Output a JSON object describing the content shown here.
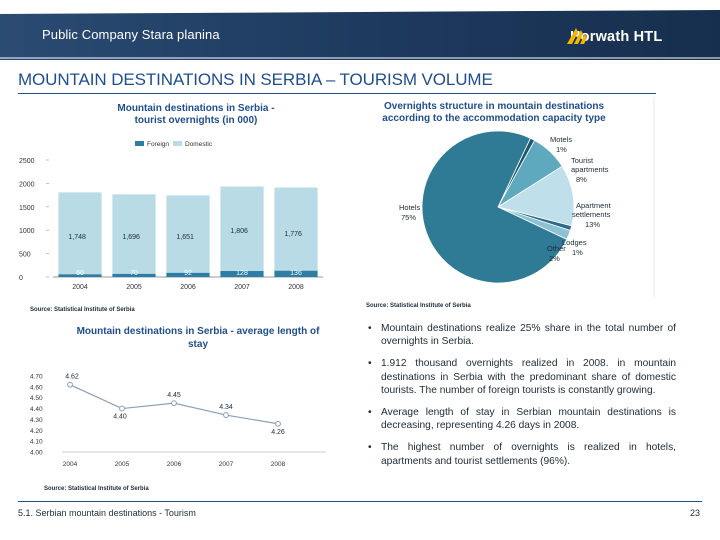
{
  "header": {
    "company": "Public Company Stara planina",
    "logo_text": "Horwath HTL"
  },
  "title": "MOUNTAIN DESTINATIONS IN SERBIA – TOURISM VOLUME",
  "colors": {
    "navy": "#1f3d63",
    "accent": "#1f4e8c",
    "foreign": "#2d7ea6",
    "domestic": "#b9dbe6",
    "line": "#8a9fb8"
  },
  "overnights_chart": {
    "title_line1": "Mountain destinations in Serbia -",
    "title_line2": "tourist overnights (in 000)",
    "source": "Source: Statistical Institute of Serbia",
    "chart_data": {
      "type": "bar",
      "stacked": true,
      "categories": [
        "2004",
        "2005",
        "2006",
        "2007",
        "2008"
      ],
      "series": [
        {
          "name": "Foreign",
          "values": [
            60,
            70,
            92,
            128,
            136
          ],
          "labels": [
            "60",
            "70",
            "92",
            "128",
            "136"
          ]
        },
        {
          "name": "Domestic",
          "values": [
            1748,
            1696,
            1651,
            1806,
            1776
          ],
          "labels": [
            "1,748",
            "1,696",
            "1,651",
            "1,806",
            "1,776"
          ]
        }
      ],
      "yticks": [
        "0",
        "500",
        "1000",
        "1500",
        "2000",
        "2500"
      ],
      "ylim": [
        0,
        2500
      ],
      "legend": "top"
    }
  },
  "structure_chart": {
    "title_line1": "Overnights structure in mountain destinations",
    "title_line2": "according to the accommodation capacity type",
    "source": "Source: Statistical Institute of Serbia",
    "chart_data": {
      "type": "pie",
      "slices": [
        {
          "label": "Hotels",
          "pct": "75%",
          "value": 75,
          "color": "#2f7a95"
        },
        {
          "label": "Motels",
          "pct": "1%",
          "value": 1,
          "color": "#1f5670"
        },
        {
          "label": "Tourist apartments",
          "pct": "8%",
          "value": 8,
          "color": "#5fa9bf"
        },
        {
          "label": "Apartment settlements",
          "pct": "13%",
          "value": 13,
          "color": "#bfe0ea"
        },
        {
          "label": "Lodges",
          "pct": "1%",
          "value": 1,
          "color": "#2b6a88"
        },
        {
          "label": "Other",
          "pct": "2%",
          "value": 2,
          "color": "#8cc2d3"
        }
      ]
    }
  },
  "stay_chart": {
    "title_line1": "Mountain destinations in Serbia - average length of",
    "title_line2": "stay",
    "source": "Source: Statistical Institute of Serbia",
    "chart_data": {
      "type": "line",
      "categories": [
        "2004",
        "2005",
        "2006",
        "2007",
        "2008"
      ],
      "values": [
        4.62,
        4.4,
        4.45,
        4.34,
        4.26
      ],
      "labels": [
        "4.62",
        "4.40",
        "4.45",
        "4.34",
        "4.26"
      ],
      "yticks": [
        "4.70",
        "4.60",
        "4.50",
        "4.40",
        "4.30",
        "4.20",
        "4.10",
        "4.00"
      ],
      "ylim": [
        4.0,
        4.7
      ]
    }
  },
  "bullets": [
    "Mountain destinations realize 25% share in the total number of overnights in Serbia.",
    "1.912 thousand overnights realized in 2008. in mountain destinations in Serbia with the predominant share of domestic tourists. The number of foreign tourists is constantly growing.",
    "Average length of stay in Serbian mountain destinations is decreasing, representing 4.26 days in 2008.",
    "The highest number of overnights is realized in hotels, apartments and tourist settlements (96%)."
  ],
  "bullet_marker": "•",
  "footer": {
    "section": "5.1. Serbian mountain destinations - Tourism",
    "page": "23"
  }
}
